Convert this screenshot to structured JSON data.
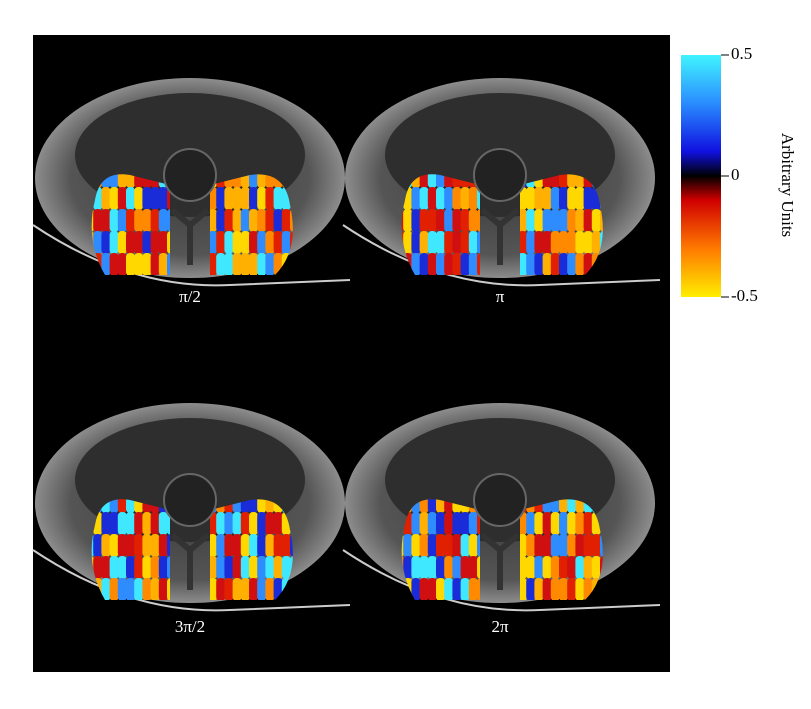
{
  "panels": [
    {
      "label": "π/2"
    },
    {
      "label": "π"
    },
    {
      "label": "3π/2"
    },
    {
      "label": "2π"
    }
  ],
  "colorbar": {
    "label": "Arbitrary Units",
    "lim": [
      -0.5,
      0.5
    ],
    "ticks": [
      0.5,
      0,
      -0.5
    ]
  }
}
